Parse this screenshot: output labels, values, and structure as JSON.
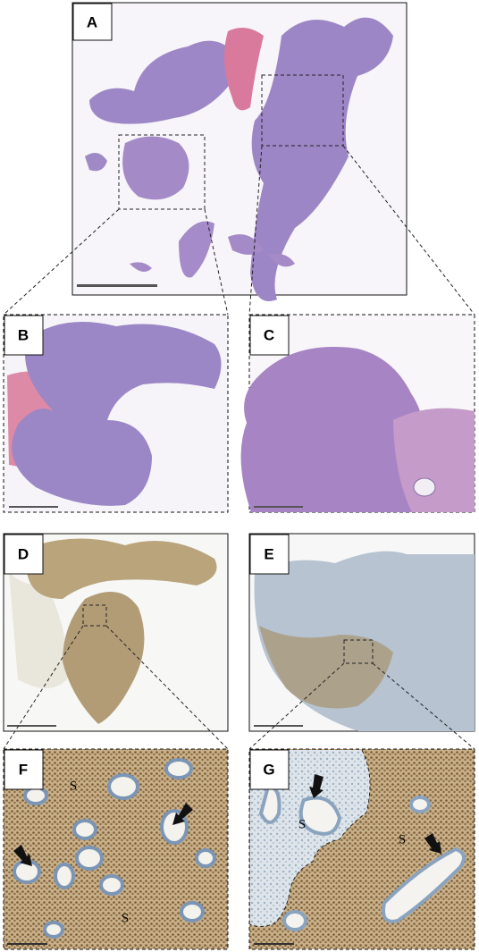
{
  "panels": [
    {
      "label": "A"
    },
    {
      "label": "B"
    },
    {
      "label": "C"
    },
    {
      "label": "D"
    },
    {
      "label": "E"
    },
    {
      "label": "F"
    },
    {
      "label": "G"
    }
  ],
  "annotations": {
    "f_stroma": [
      "S",
      "S"
    ],
    "g_stroma": [
      "S",
      "S"
    ]
  }
}
